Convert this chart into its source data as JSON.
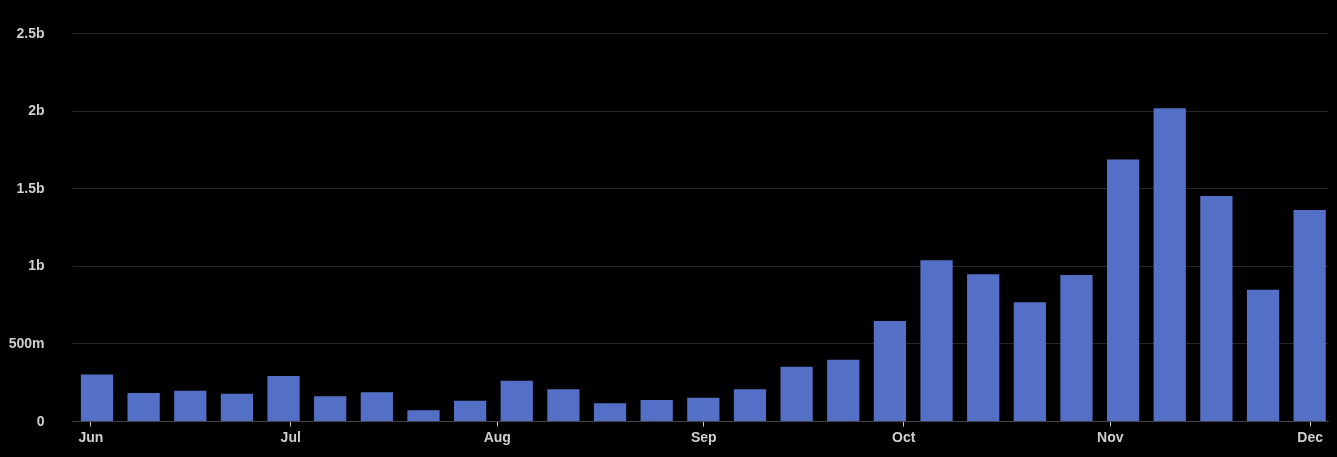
{
  "chart_data": {
    "type": "bar",
    "x": [
      "--06-02",
      "--06-09",
      "--06-16",
      "--06-23",
      "--06-30",
      "--07-07",
      "--07-14",
      "--07-21",
      "--07-28",
      "--08-04",
      "--08-11",
      "--08-18",
      "--08-25",
      "--09-01",
      "--09-08",
      "--09-15",
      "--09-22",
      "--09-29",
      "--10-06",
      "--10-13",
      "--10-20",
      "--10-27",
      "--11-03",
      "--11-10",
      "--11-17",
      "--11-24",
      "--12-01"
    ],
    "values": [
      300000000,
      180000000,
      195000000,
      175000000,
      290000000,
      160000000,
      185000000,
      70000000,
      130000000,
      260000000,
      205000000,
      115000000,
      135000000,
      150000000,
      205000000,
      350000000,
      395000000,
      645000000,
      1035000000,
      945000000,
      765000000,
      940000000,
      1685000000,
      2015000000,
      1450000000,
      845000000,
      1360000000
    ],
    "color": "#5470c6",
    "xlim": [
      "--05-30",
      "--12-03"
    ],
    "xticks": [
      {
        "value": "--06-01",
        "label": "Jun"
      },
      {
        "value": "--07-01",
        "label": "Jul"
      },
      {
        "value": "--08-01",
        "label": "Aug"
      },
      {
        "value": "--09-01",
        "label": "Sep"
      },
      {
        "value": "--10-01",
        "label": "Oct"
      },
      {
        "value": "--11-01",
        "label": "Nov"
      },
      {
        "value": "--12-01",
        "label": "Dec"
      }
    ],
    "ylim": [
      0,
      2500000000
    ],
    "yticks": [
      0,
      {
        "value": 500000000,
        "label": "500m"
      },
      {
        "value": 1000000000,
        "label": "1b"
      },
      {
        "value": 1500000000,
        "label": "1.5b"
      },
      {
        "value": 2000000000,
        "label": "2b"
      },
      {
        "value": 2500000000,
        "label": "2.5b"
      }
    ],
    "grid": "y"
  }
}
